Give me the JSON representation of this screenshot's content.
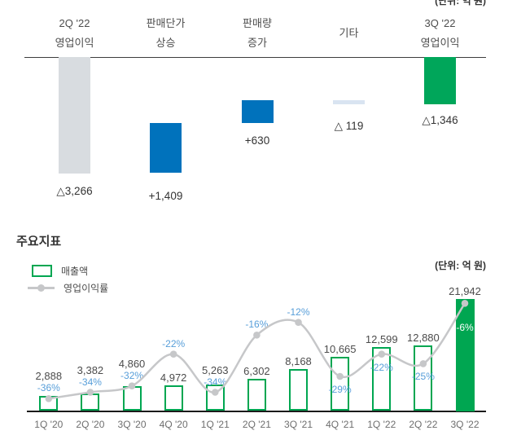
{
  "colors": {
    "blue": "#0072BC",
    "green": "#00A651",
    "gray_bar": "#D8DCE0",
    "light_blue_bar": "#D9E4F1",
    "line_gray": "#C6C7C9",
    "pct_blue": "#579ED9",
    "on_bar_pct": "#FFFFFF"
  },
  "waterfall_section": {
    "unit_label": "(단위: 억 원)"
  },
  "key_metrics_section": {
    "title": "주요지표",
    "unit_label": "(단위: 억 원)",
    "legend": {
      "revenue": "매출액",
      "margin": "영업이익률"
    }
  },
  "chart_data": [
    {
      "id": "operating-profit-bridge",
      "type": "waterfall",
      "title": "",
      "unit": "(단위: 억 원)",
      "note": "zero line at top, negative values extend downward; △ denotes a loss",
      "columns": [
        {
          "header_lines": [
            "2Q '22",
            "영업이익"
          ],
          "value": -3266,
          "label": "△3,266",
          "role": "start",
          "color": "#D8DCE0"
        },
        {
          "header_lines": [
            "판매단가",
            "상승"
          ],
          "value": 1409,
          "label": "+1,409",
          "role": "delta",
          "color": "#0072BC"
        },
        {
          "header_lines": [
            "판매량",
            "증가"
          ],
          "value": 630,
          "label": "+630",
          "role": "delta",
          "color": "#0072BC"
        },
        {
          "header_lines": [
            "기타"
          ],
          "value": -119,
          "label": "△ 119",
          "role": "delta",
          "color": "#D9E4F1"
        },
        {
          "header_lines": [
            "3Q '22",
            "영업이익"
          ],
          "value": -1346,
          "label": "△1,346",
          "role": "end",
          "color": "#00A65A"
        }
      ]
    },
    {
      "id": "key-metrics-combo",
      "type": "combo",
      "title": "주요지표",
      "unit": "(단위: 억 원)",
      "categories": [
        "1Q '20",
        "2Q '20",
        "3Q '20",
        "4Q '20",
        "1Q '21",
        "2Q '21",
        "3Q '21",
        "4Q '21",
        "1Q '22",
        "2Q '22",
        "3Q '22"
      ],
      "series": [
        {
          "name": "매출액",
          "type": "bar",
          "values": [
            2888,
            3382,
            4860,
            4972,
            5263,
            6302,
            8168,
            10665,
            12599,
            12880,
            21942
          ],
          "labels": [
            "2,888",
            "3,382",
            "4,860",
            "4,972",
            "5,263",
            "6,302",
            "8,168",
            "10,665",
            "12,599",
            "12,880",
            "21,942"
          ],
          "highlight_index": 10,
          "style": "outlined-green, highlighted bar filled green"
        },
        {
          "name": "영업이익률",
          "type": "line",
          "values": [
            -36,
            -34,
            -32,
            -22,
            -34,
            -16,
            -12,
            -29,
            -22,
            -25,
            -6
          ],
          "labels": [
            "-36%",
            "-34%",
            "-32%",
            "-22%",
            "-34%",
            "-16%",
            "-12%",
            "-29%",
            "-22%",
            "-25%",
            "-6%"
          ],
          "label_positions": [
            "above",
            "above",
            "above",
            "above",
            "above",
            "above",
            "above",
            "below",
            "below",
            "below",
            "on_bar"
          ],
          "style": "smooth gray line with gray dots"
        }
      ],
      "legend_position": "top-left",
      "grid": false
    }
  ]
}
